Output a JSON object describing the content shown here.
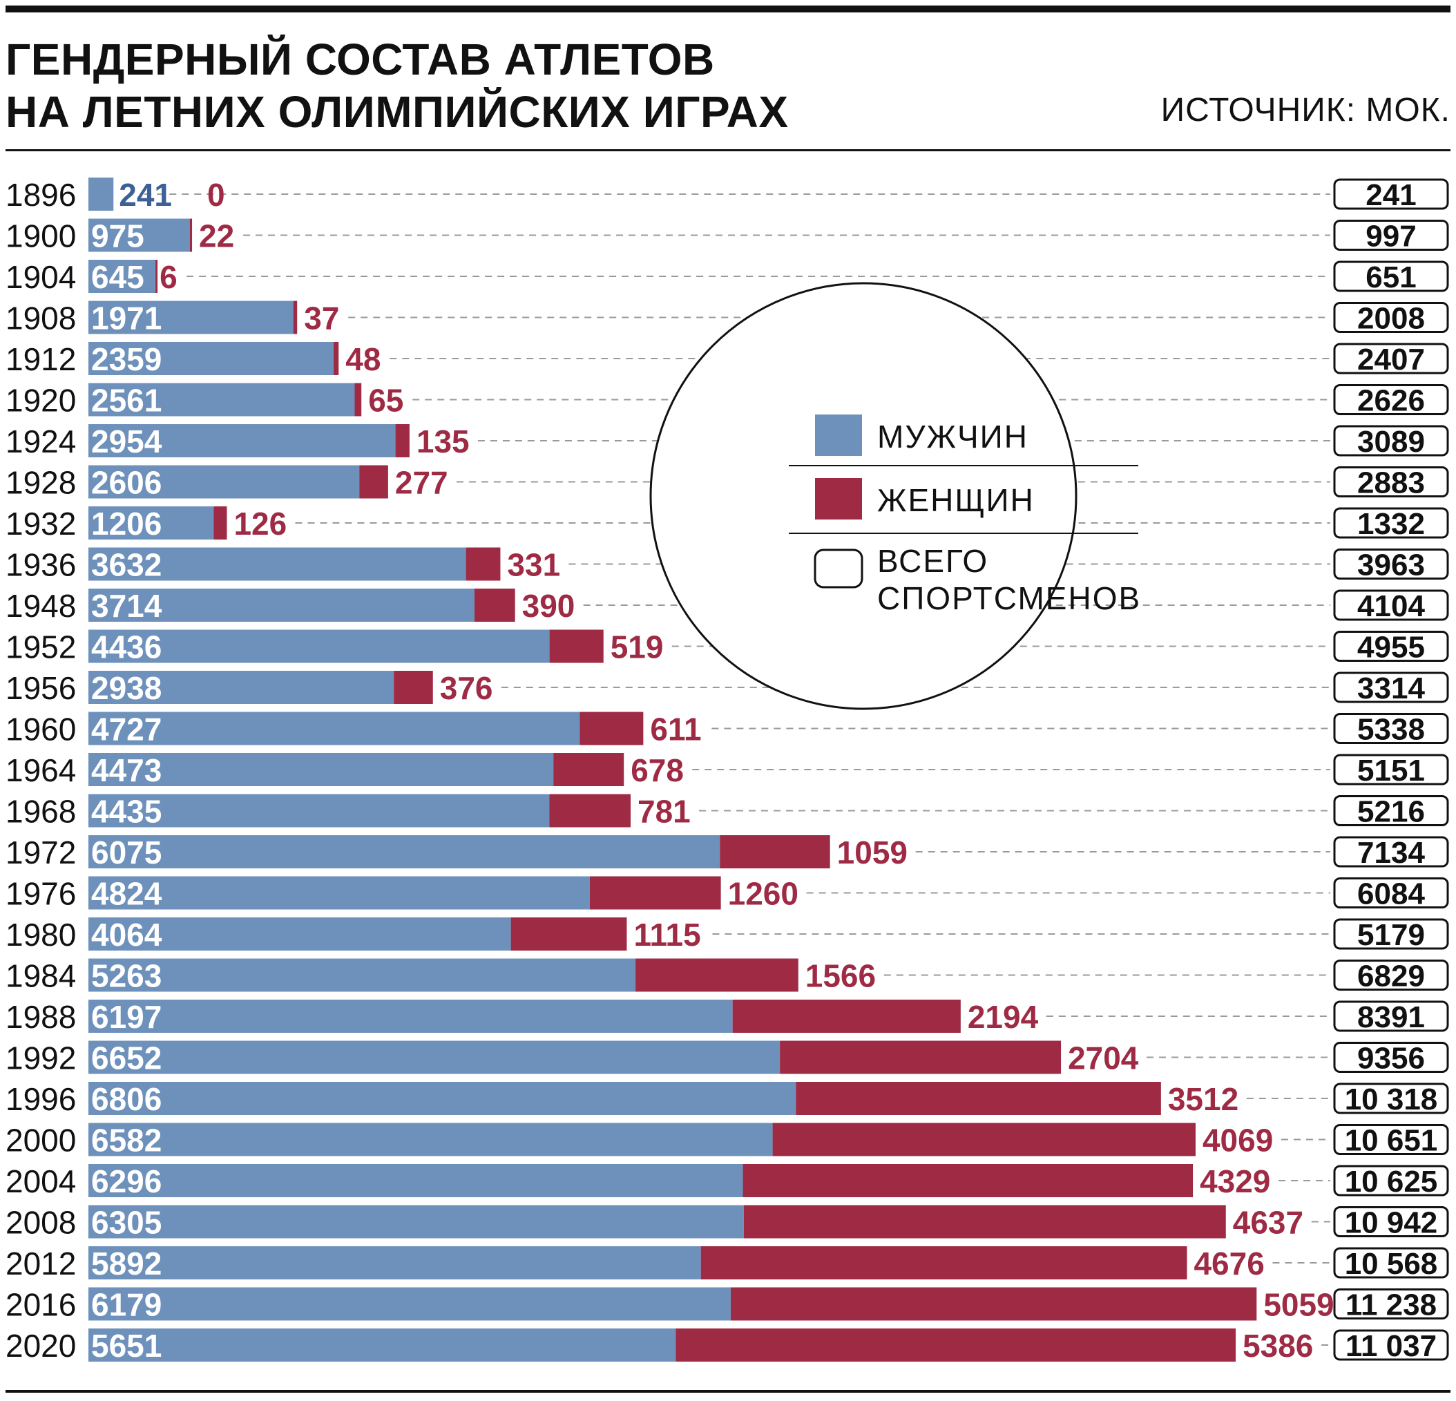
{
  "title_line1": "ГЕНДЕРНЫЙ СОСТАВ АТЛЕТОВ",
  "title_line2": "НА ЛЕТНИХ ОЛИМПИЙСКИХ ИГРАХ",
  "source": "ИСТОЧНИК: МОК.",
  "colors": {
    "men": "#6e91bb",
    "women": "#9e2a44",
    "text": "#111111",
    "dash": "#9a9a9a"
  },
  "legend": {
    "men": "МУЖЧИН",
    "women": "ЖЕНЩИН",
    "total_line1": "ВСЕГО",
    "total_line2": "СПОРТСМЕНОВ"
  },
  "chart_data": {
    "type": "bar",
    "orientation": "horizontal",
    "stacked": true,
    "categories": [
      "1896",
      "1900",
      "1904",
      "1908",
      "1912",
      "1920",
      "1924",
      "1928",
      "1932",
      "1936",
      "1948",
      "1952",
      "1956",
      "1960",
      "1964",
      "1968",
      "1972",
      "1976",
      "1980",
      "1984",
      "1988",
      "1992",
      "1996",
      "2000",
      "2004",
      "2008",
      "2012",
      "2016",
      "2020"
    ],
    "series": [
      {
        "name": "МУЖЧИН",
        "values": [
          241,
          975,
          645,
          1971,
          2359,
          2561,
          2954,
          2606,
          1206,
          3632,
          3714,
          4436,
          2938,
          4727,
          4473,
          4435,
          6075,
          4824,
          4064,
          5263,
          6197,
          6652,
          6806,
          6582,
          6296,
          6305,
          5892,
          6179,
          5651
        ]
      },
      {
        "name": "ЖЕНЩИН",
        "values": [
          0,
          22,
          6,
          37,
          48,
          65,
          135,
          277,
          126,
          331,
          390,
          519,
          376,
          611,
          678,
          781,
          1059,
          1260,
          1115,
          1566,
          2194,
          2704,
          3512,
          4069,
          4329,
          4637,
          4676,
          5059,
          5386
        ]
      }
    ],
    "totals": [
      "241",
      "997",
      "651",
      "2008",
      "2407",
      "2626",
      "3089",
      "2883",
      "1332",
      "3963",
      "4104",
      "4955",
      "3314",
      "5338",
      "5151",
      "5216",
      "7134",
      "6084",
      "5179",
      "6829",
      "8391",
      "9356",
      "10 318",
      "10 651",
      "10 625",
      "10 942",
      "10 568",
      "11 238",
      "11 037"
    ],
    "xlim": [
      0,
      11238
    ],
    "grid": false,
    "legend_position": "center-right"
  }
}
